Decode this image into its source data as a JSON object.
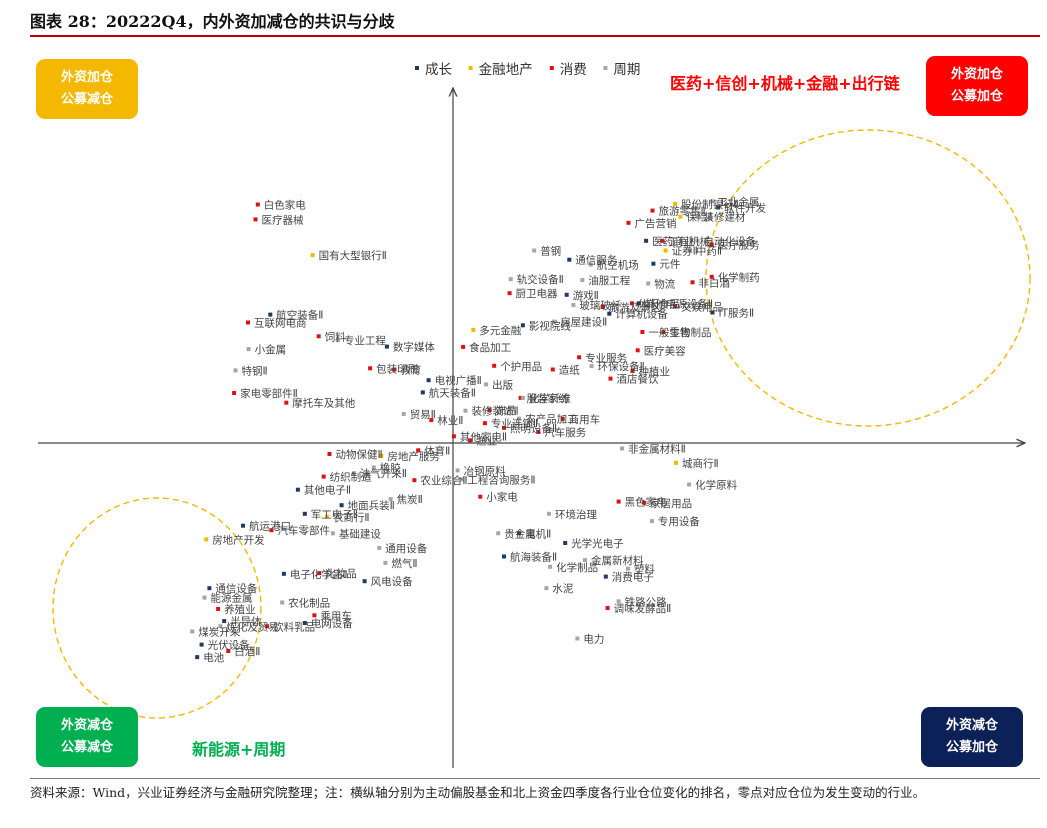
{
  "title": "图表 28：20222Q4，内外资加减仓的共识与分歧",
  "footnote": "资料来源：Wind，兴业证券经济与金融研究院整理；注：横纵轴分别为主动偏股基金和北上资金四季度各行业仓位变化的排名，零点对应仓位为发生变动的行业。",
  "quadrants": {
    "top_left": {
      "line1": "外资加仓",
      "line2": "公募减仓",
      "color": "#f5b800"
    },
    "top_right": {
      "line1": "外资加仓",
      "line2": "公募加仓",
      "color": "#ff0000"
    },
    "bottom_left": {
      "line1": "外资减仓",
      "line2": "公募减仓",
      "color": "#00b050"
    },
    "bottom_right": {
      "line1": "外资减仓",
      "line2": "公募加仓",
      "color": "#0c2157"
    }
  },
  "annotations": {
    "top_right": {
      "text": "医药+信创+机械+金融+出行链",
      "color": "#ff0000"
    },
    "bottom_left": {
      "text": "新能源+周期",
      "color": "#00b050"
    }
  },
  "chart_data": {
    "type": "scatter",
    "xlabel": "",
    "ylabel": "",
    "xlim": [
      -100,
      100
    ],
    "ylim": [
      -100,
      100
    ],
    "grid": false,
    "legend": "top-center",
    "legend_entries": [
      {
        "name": "成长",
        "color": "#1f3864"
      },
      {
        "name": "金融地产",
        "color": "#f5b800"
      },
      {
        "name": "消费",
        "color": "#e01010"
      },
      {
        "name": "周期",
        "color": "#a6a6a6"
      }
    ],
    "points": [
      {
        "label": "白色家电",
        "cat": "消费",
        "x": -67.3,
        "y": 78.2
      },
      {
        "label": "医疗器械",
        "cat": "消费",
        "x": -68.1,
        "y": 73.3
      },
      {
        "label": "国有大型银行Ⅱ",
        "cat": "金融地产",
        "x": -48.4,
        "y": 61.6
      },
      {
        "label": "航空装备Ⅱ",
        "cat": "成长",
        "x": -63.0,
        "y": 42.1
      },
      {
        "label": "互联网电商",
        "cat": "消费",
        "x": -70.7,
        "y": 39.5
      },
      {
        "label": "小金属",
        "cat": "周期",
        "x": -70.5,
        "y": 30.8
      },
      {
        "label": "饲料",
        "cat": "消费",
        "x": -46.3,
        "y": 35.0
      },
      {
        "label": "专业工程",
        "cat": "周期",
        "x": -39.7,
        "y": 33.7
      },
      {
        "label": "数字媒体",
        "cat": "成长",
        "x": -22.8,
        "y": 31.6
      },
      {
        "label": "包装印刷",
        "cat": "消费",
        "x": -28.6,
        "y": 24.5
      },
      {
        "label": "教育",
        "cat": "消费",
        "x": -20.2,
        "y": 24.1
      },
      {
        "label": "电视广播Ⅱ",
        "cat": "成长",
        "x": -8.4,
        "y": 20.6
      },
      {
        "label": "特钢Ⅱ",
        "cat": "周期",
        "x": -75.0,
        "y": 23.8
      },
      {
        "label": "家电零部件Ⅱ",
        "cat": "消费",
        "x": -75.5,
        "y": 16.4
      },
      {
        "label": "摩托车及其他",
        "cat": "消费",
        "x": -57.5,
        "y": 13.2
      },
      {
        "label": "航天装备Ⅱ",
        "cat": "成长",
        "x": -10.4,
        "y": 16.6
      },
      {
        "label": "贸易Ⅱ",
        "cat": "周期",
        "x": -17.0,
        "y": 9.5
      },
      {
        "label": "林业Ⅱ",
        "cat": "消费",
        "x": -7.5,
        "y": 7.5
      },
      {
        "label": "其他家电Ⅱ",
        "cat": "消费",
        "x": 0.3,
        "y": 2.2
      },
      {
        "label": "动物保健Ⅱ",
        "cat": "消费",
        "x": -42.6,
        "y": -3.6
      },
      {
        "label": "房地产服务",
        "cat": "金融地产",
        "x": -24.7,
        "y": -4.2
      },
      {
        "label": "体育Ⅱ",
        "cat": "消费",
        "x": -12.0,
        "y": -2.4
      },
      {
        "label": "橡胶",
        "cat": "周期",
        "x": -27.3,
        "y": -8.0
      },
      {
        "label": "纺织制造",
        "cat": "消费",
        "x": -44.6,
        "y": -11.0
      },
      {
        "label": "油气开采Ⅱ",
        "cat": "周期",
        "x": -34.2,
        "y": -9.9
      },
      {
        "label": "农业综合Ⅱ",
        "cat": "消费",
        "x": -13.3,
        "y": -12.2
      },
      {
        "label": "其他电子Ⅱ",
        "cat": "成长",
        "x": -53.5,
        "y": -15.3
      },
      {
        "label": "地面兵装Ⅱ",
        "cat": "成长",
        "x": -38.4,
        "y": -20.4
      },
      {
        "label": "焦炭Ⅱ",
        "cat": "周期",
        "x": -21.5,
        "y": -18.4
      },
      {
        "label": "军工电子Ⅱ",
        "cat": "成长",
        "x": -51.1,
        "y": -23.2
      },
      {
        "label": "农商行Ⅱ",
        "cat": "金融地产",
        "x": -43.5,
        "y": -24.2
      },
      {
        "label": "房地产开发",
        "cat": "金融地产",
        "x": -85.1,
        "y": -31.6
      },
      {
        "label": "航运港口",
        "cat": "成长",
        "x": -72.4,
        "y": -27.1
      },
      {
        "label": "汽车零部件",
        "cat": "消费",
        "x": -62.6,
        "y": -28.6
      },
      {
        "label": "基础建设",
        "cat": "周期",
        "x": -41.4,
        "y": -29.6
      },
      {
        "label": "通用设备",
        "cat": "周期",
        "x": -25.4,
        "y": -34.4
      },
      {
        "label": "燃气Ⅱ",
        "cat": "周期",
        "x": -23.3,
        "y": -39.3
      },
      {
        "label": "风电设备",
        "cat": "成长",
        "x": -30.5,
        "y": -45.3
      },
      {
        "label": "电子化学品Ⅱ",
        "cat": "成长",
        "x": -58.3,
        "y": -42.9
      },
      {
        "label": "化妆品",
        "cat": "消费",
        "x": -46.1,
        "y": -42.7
      },
      {
        "label": "通信设备",
        "cat": "成长",
        "x": -84.0,
        "y": -47.6
      },
      {
        "label": "能源金属",
        "cat": "周期",
        "x": -85.7,
        "y": -50.7
      },
      {
        "label": "农化制品",
        "cat": "周期",
        "x": -58.9,
        "y": -52.3
      },
      {
        "label": "养殖业",
        "cat": "消费",
        "x": -81.0,
        "y": -54.4
      },
      {
        "label": "乘用车",
        "cat": "消费",
        "x": -47.8,
        "y": -56.5
      },
      {
        "label": "煤炭开采",
        "cat": "周期",
        "x": -89.9,
        "y": -61.8
      },
      {
        "label": "半导体",
        "cat": "成长",
        "x": -78.9,
        "y": -58.4
      },
      {
        "label": "炼化及贸易",
        "cat": "周期",
        "x": -80.2,
        "y": -60.1
      },
      {
        "label": "饮料乳品",
        "cat": "消费",
        "x": -64.1,
        "y": -60.1
      },
      {
        "label": "电网设备",
        "cat": "成长",
        "x": -51.1,
        "y": -59.0
      },
      {
        "label": "光伏设备",
        "cat": "成长",
        "x": -86.7,
        "y": -66.1
      },
      {
        "label": "白酒Ⅱ",
        "cat": "消费",
        "x": -77.5,
        "y": -68.2
      },
      {
        "label": "电池",
        "cat": "成长",
        "x": -88.2,
        "y": -70.2
      },
      {
        "label": "股份制银行Ⅱ",
        "cat": "金融地产",
        "x": 76.6,
        "y": 78.4
      },
      {
        "label": "工业金属",
        "cat": "周期",
        "x": 89.1,
        "y": 79.2
      },
      {
        "label": "软件开发",
        "cat": "成长",
        "x": 91.4,
        "y": 77.2
      },
      {
        "label": "旅游零售Ⅱ",
        "cat": "消费",
        "x": 68.8,
        "y": 76.2
      },
      {
        "label": "保险Ⅱ",
        "cat": "金融地产",
        "x": 78.4,
        "y": 74.2
      },
      {
        "label": "装修建材",
        "cat": "周期",
        "x": 84.3,
        "y": 74.2
      },
      {
        "label": "广告营销",
        "cat": "消费",
        "x": 60.5,
        "y": 72.2
      },
      {
        "label": "医药商业",
        "cat": "成长",
        "x": 66.6,
        "y": 66.3
      },
      {
        "label": "自动化设备",
        "cat": "周期",
        "x": 84.3,
        "y": 66.3
      },
      {
        "label": "工程机械",
        "cat": "消费",
        "x": 72.1,
        "y": 66.3
      },
      {
        "label": "中药Ⅱ",
        "cat": "周期",
        "x": 81.7,
        "y": 63.1
      },
      {
        "label": "证券Ⅱ",
        "cat": "金融地产",
        "x": 73.3,
        "y": 63.1
      },
      {
        "label": "医疗服务",
        "cat": "消费",
        "x": 89.2,
        "y": 65.1
      },
      {
        "label": "元件",
        "cat": "成长",
        "x": 69.1,
        "y": 58.8
      },
      {
        "label": "化学制药",
        "cat": "消费",
        "x": 89.2,
        "y": 54.5
      },
      {
        "label": "非白酒",
        "cat": "消费",
        "x": 82.6,
        "y": 52.7
      },
      {
        "label": "物流",
        "cat": "周期",
        "x": 67.3,
        "y": 52.3
      },
      {
        "label": "休闲食品",
        "cat": "消费",
        "x": 61.7,
        "y": 45.8
      },
      {
        "label": "其他电源设备Ⅱ",
        "cat": "成长",
        "x": 64.1,
        "y": 45.8
      },
      {
        "label": "文娱用品",
        "cat": "消费",
        "x": 76.6,
        "y": 44.8
      },
      {
        "label": "IT服务Ⅱ",
        "cat": "成长",
        "x": 89.5,
        "y": 42.8
      },
      {
        "label": "一般零售",
        "cat": "消费",
        "x": 65.3,
        "y": 36.4
      },
      {
        "label": "生物制品",
        "cat": "消费",
        "x": 72.6,
        "y": 36.4
      },
      {
        "label": "医疗美容",
        "cat": "消费",
        "x": 63.7,
        "y": 30.4
      },
      {
        "label": "种植业",
        "cat": "消费",
        "x": 61.9,
        "y": 23.6
      },
      {
        "label": "酒店餐饮",
        "cat": "消费",
        "x": 54.3,
        "y": 21.1
      },
      {
        "label": "环保设备Ⅱ",
        "cat": "周期",
        "x": 47.8,
        "y": 25.2
      },
      {
        "label": "普钢",
        "cat": "周期",
        "x": 28.0,
        "y": 63.1
      },
      {
        "label": "通信服务",
        "cat": "成长",
        "x": 40.1,
        "y": 60.1
      },
      {
        "label": "航空机场",
        "cat": "周期",
        "x": 47.5,
        "y": 58.5
      },
      {
        "label": "油服工程",
        "cat": "周期",
        "x": 44.6,
        "y": 53.4
      },
      {
        "label": "轨交设备Ⅱ",
        "cat": "周期",
        "x": 19.9,
        "y": 53.7
      },
      {
        "label": "厨卫电器",
        "cat": "消费",
        "x": 19.5,
        "y": 49.1
      },
      {
        "label": "游戏Ⅱ",
        "cat": "成长",
        "x": 39.2,
        "y": 48.6
      },
      {
        "label": "玻璃玻纤",
        "cat": "周期",
        "x": 41.5,
        "y": 45.2
      },
      {
        "label": "旅游及景区",
        "cat": "消费",
        "x": 51.6,
        "y": 44.6
      },
      {
        "label": "计算机设备",
        "cat": "成长",
        "x": 53.9,
        "y": 42.4
      },
      {
        "label": "多元金融",
        "cat": "金融地产",
        "x": 7.0,
        "y": 37.1
      },
      {
        "label": "影视院线",
        "cat": "成长",
        "x": 24.1,
        "y": 38.6
      },
      {
        "label": "房屋建设Ⅱ",
        "cat": "周期",
        "x": 34.9,
        "y": 39.8
      },
      {
        "label": "食品加工",
        "cat": "消费",
        "x": 3.5,
        "y": 31.5
      },
      {
        "label": "专业服务",
        "cat": "消费",
        "x": 43.5,
        "y": 28.1
      },
      {
        "label": "个护用品",
        "cat": "消费",
        "x": 14.2,
        "y": 25.3
      },
      {
        "label": "造纸",
        "cat": "消费",
        "x": 34.4,
        "y": 24.1
      },
      {
        "label": "出版",
        "cat": "周期",
        "x": 11.4,
        "y": 19.2
      },
      {
        "label": "服装家纺",
        "cat": "消费",
        "x": 23.3,
        "y": 14.8
      },
      {
        "label": "化学纤维",
        "cat": "周期",
        "x": 24.1,
        "y": 14.8
      },
      {
        "label": "装修装饰Ⅱ",
        "cat": "周期",
        "x": 4.3,
        "y": 10.6
      },
      {
        "label": "饰品",
        "cat": "消费",
        "x": 12.6,
        "y": 10.8
      },
      {
        "label": "农产品加工",
        "cat": "周期",
        "x": 22.8,
        "y": 8.0
      },
      {
        "label": "商用车",
        "cat": "消费",
        "x": 37.8,
        "y": 7.9
      },
      {
        "label": "专业连锁Ⅱ",
        "cat": "消费",
        "x": 11.0,
        "y": 6.5
      },
      {
        "label": "照明设备Ⅱ",
        "cat": "消费",
        "x": 17.6,
        "y": 5.0
      },
      {
        "label": "汽车服务",
        "cat": "消费",
        "x": 29.4,
        "y": 3.6
      },
      {
        "label": "渔业",
        "cat": "消费",
        "x": 5.9,
        "y": 0.9
      },
      {
        "label": "非金属材料Ⅱ",
        "cat": "周期",
        "x": 58.3,
        "y": -1.8
      },
      {
        "label": "城商行Ⅱ",
        "cat": "金融地产",
        "x": 76.9,
        "y": -6.5
      },
      {
        "label": "化学原料",
        "cat": "周期",
        "x": 81.4,
        "y": -13.6
      },
      {
        "label": "冶钢原料",
        "cat": "周期",
        "x": 1.6,
        "y": -9.0
      },
      {
        "label": "工程咨询服务Ⅱ",
        "cat": "周期",
        "x": 2.9,
        "y": -11.9
      },
      {
        "label": "小家电",
        "cat": "消费",
        "x": 9.4,
        "y": -17.6
      },
      {
        "label": "黑色家电",
        "cat": "消费",
        "x": 57.1,
        "y": -19.2
      },
      {
        "label": "家居用品",
        "cat": "消费",
        "x": 65.9,
        "y": -19.6
      },
      {
        "label": "专用设备",
        "cat": "周期",
        "x": 68.6,
        "y": -25.6
      },
      {
        "label": "环境治理",
        "cat": "周期",
        "x": 33.1,
        "y": -23.2
      },
      {
        "label": "贵金属",
        "cat": "周期",
        "x": 15.6,
        "y": -29.6
      },
      {
        "label": "电机Ⅱ",
        "cat": "成长",
        "x": 22.8,
        "y": -29.6
      },
      {
        "label": "光学光电子",
        "cat": "成长",
        "x": 38.7,
        "y": -32.8
      },
      {
        "label": "航海装备Ⅱ",
        "cat": "成长",
        "x": 17.6,
        "y": -37.2
      },
      {
        "label": "化学制品",
        "cat": "周期",
        "x": 33.5,
        "y": -40.6
      },
      {
        "label": "金属新材料",
        "cat": "周期",
        "x": 45.5,
        "y": -38.4
      },
      {
        "label": "水泥",
        "cat": "周期",
        "x": 32.2,
        "y": -47.6
      },
      {
        "label": "消费电子",
        "cat": "成长",
        "x": 52.7,
        "y": -43.8
      },
      {
        "label": "塑料",
        "cat": "周期",
        "x": 60.3,
        "y": -41.2
      },
      {
        "label": "铁路公路",
        "cat": "周期",
        "x": 57.1,
        "y": -51.9
      },
      {
        "label": "调味发酵品Ⅱ",
        "cat": "消费",
        "x": 53.3,
        "y": -54.1
      },
      {
        "label": "电力",
        "cat": "周期",
        "x": 42.9,
        "y": -64.1
      }
    ]
  }
}
